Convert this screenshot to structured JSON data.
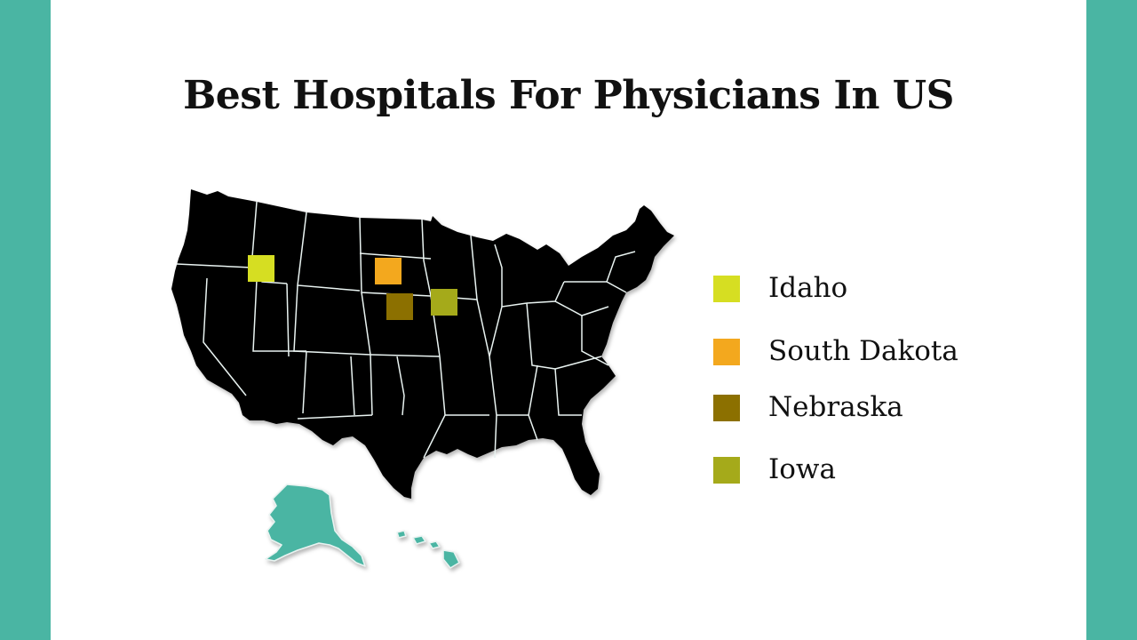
{
  "title": "Best Hospitals For Physicians In US",
  "colors": {
    "frame": "#4ab5a3",
    "map_fill": "#4ab5a3",
    "background": "#ffffff"
  },
  "map": {
    "region": "United States",
    "highlighted": [
      {
        "state": "Idaho",
        "color": "#d6de22"
      },
      {
        "state": "South Dakota",
        "color": "#f3a81e"
      },
      {
        "state": "Nebraska",
        "color": "#8c7000"
      },
      {
        "state": "Iowa",
        "color": "#a5aa1a"
      }
    ]
  },
  "legend": [
    {
      "label": "Idaho",
      "color": "#d6de22"
    },
    {
      "label": "South Dakota",
      "color": "#f3a81e"
    },
    {
      "label": "Nebraska",
      "color": "#8c7000"
    },
    {
      "label": "Iowa",
      "color": "#a5aa1a"
    }
  ]
}
